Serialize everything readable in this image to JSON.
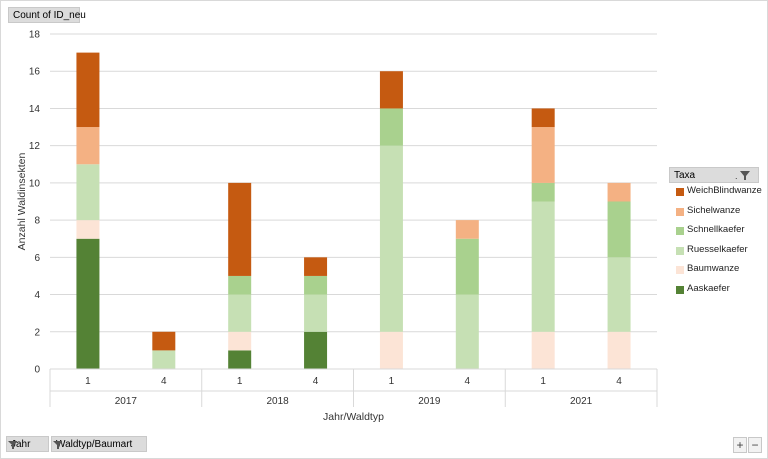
{
  "field_buttons": {
    "value_field": "Count of ID_neu",
    "filter_jahr": "Jahr",
    "filter_waldtyp": "Waldtyp/Baumart"
  },
  "legend": {
    "title": "Taxa"
  },
  "zoom": {
    "plus": "+",
    "minus": "−"
  },
  "chart_data": {
    "type": "bar",
    "stacked": true,
    "xlabel": "Jahr/Waldtyp",
    "ylabel": "Anzahl Waldinsekten",
    "ylim": [
      0,
      18
    ],
    "yticks": [
      0,
      2,
      4,
      6,
      8,
      10,
      12,
      14,
      16,
      18
    ],
    "grid": true,
    "legend_position": "right",
    "groups": [
      {
        "label": "2017",
        "categories": [
          "1",
          "4"
        ]
      },
      {
        "label": "2018",
        "categories": [
          "1",
          "4"
        ]
      },
      {
        "label": "2019",
        "categories": [
          "1",
          "4"
        ]
      },
      {
        "label": "2021",
        "categories": [
          "1",
          "4"
        ]
      }
    ],
    "categories": [
      "2017 1",
      "2017 4",
      "2018 1",
      "2018 4",
      "2019 1",
      "2019 4",
      "2021 1",
      "2021 4"
    ],
    "series": [
      {
        "name": "Aaskaefer",
        "color": "#548235",
        "values": [
          7,
          0,
          1,
          2,
          0,
          0,
          0,
          0
        ]
      },
      {
        "name": "Baumwanze",
        "color": "#fce4d6",
        "values": [
          1,
          0,
          1,
          0,
          2,
          0,
          2,
          2
        ]
      },
      {
        "name": "Ruesselkaefer",
        "color": "#c6e0b4",
        "values": [
          3,
          1,
          2,
          2,
          10,
          4,
          7,
          4
        ]
      },
      {
        "name": "Schnellkaefer",
        "color": "#a9d18e",
        "values": [
          0,
          0,
          1,
          1,
          2,
          3,
          1,
          3
        ]
      },
      {
        "name": "Sichelwanze",
        "color": "#f4b183",
        "values": [
          2,
          0,
          0,
          0,
          0,
          1,
          3,
          1
        ]
      },
      {
        "name": "WeichBlindwanze",
        "color": "#c55a11",
        "values": [
          4,
          1,
          5,
          1,
          2,
          0,
          1,
          0
        ]
      }
    ]
  }
}
